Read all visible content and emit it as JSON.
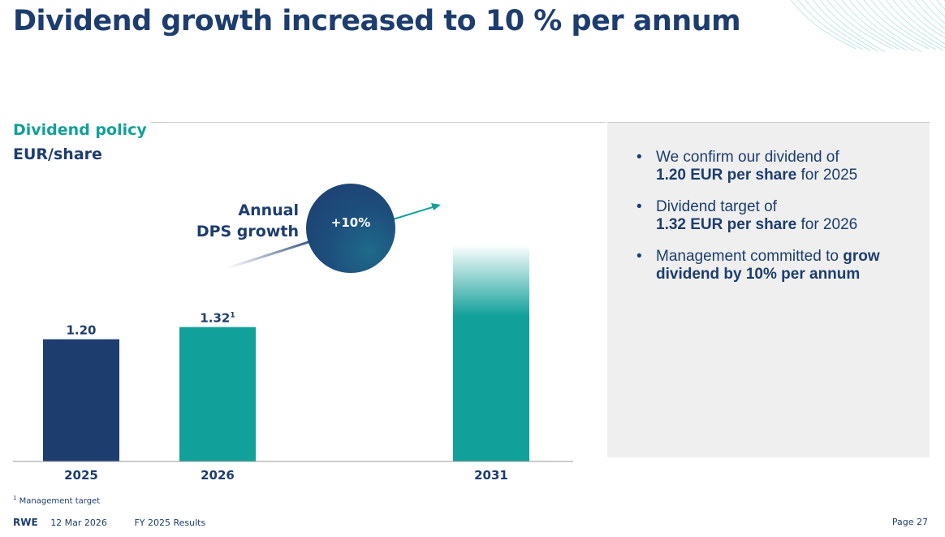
{
  "title": "Dividend growth increased to 10 % per annum",
  "subtitle": {
    "line1": "Dividend policy",
    "line2": "EUR/share"
  },
  "growth_label": {
    "line1": "Annual",
    "line2": "DPS growth",
    "badge": "+10%"
  },
  "bullets": [
    {
      "pre": "We confirm our dividend of ",
      "bold": "1.20 EUR per share",
      "post": " for 2025"
    },
    {
      "pre": "Dividend target of ",
      "bold": "1.32 EUR per share",
      "post": " for 2026"
    },
    {
      "pre": "Management committed to ",
      "bold": "grow dividend by 10% per annum",
      "post": ""
    }
  ],
  "footnote": {
    "mark": "1",
    "text": "Management target"
  },
  "footer": {
    "logo": "RWE",
    "date": "12 Mar 2026",
    "doc": "FY 2025 Results",
    "page": "Page 27"
  },
  "colors": {
    "navy": "#1d3d6e",
    "teal": "#12a09a"
  },
  "chart_data": {
    "type": "bar",
    "title": "Dividend policy",
    "ylabel": "EUR/share",
    "categories": [
      "2025",
      "2026",
      "2031"
    ],
    "values": [
      1.2,
      1.32,
      2.13
    ],
    "value_labels": [
      "1.20",
      "1.32",
      ""
    ],
    "label_superscripts": [
      "",
      "1",
      ""
    ],
    "bar_colors": [
      "#1d3d6e",
      "#12a09a",
      "#12a09a"
    ],
    "ylim": [
      0,
      2.4
    ],
    "grid": false
  }
}
